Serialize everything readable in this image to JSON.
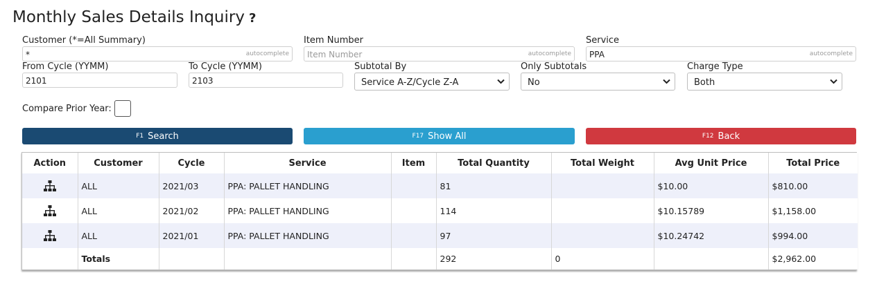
{
  "page": {
    "title": "Monthly Sales Details Inquiry",
    "help_glyph": "?"
  },
  "form": {
    "customer": {
      "label": "Customer (*=All Summary)",
      "value": "*",
      "hint": "autocomplete"
    },
    "item_number": {
      "label": "Item Number",
      "value": "",
      "placeholder": "Item Number",
      "hint": "autocomplete"
    },
    "service": {
      "label": "Service",
      "value": "PPA",
      "hint": "autocomplete"
    },
    "from_cycle": {
      "label": "From Cycle (YYMM)",
      "value": "2101"
    },
    "to_cycle": {
      "label": "To Cycle (YYMM)",
      "value": "2103"
    },
    "subtotal_by": {
      "label": "Subtotal By",
      "selected": "Service A-Z/Cycle Z-A"
    },
    "only_subtotals": {
      "label": "Only Subtotals",
      "selected": "No"
    },
    "charge_type": {
      "label": "Charge Type",
      "selected": "Both"
    },
    "compare_prior_year": {
      "label": "Compare Prior Year:",
      "checked": false
    }
  },
  "buttons": {
    "search": {
      "key": "F1",
      "label": "Search",
      "color": "#1a4a72"
    },
    "show_all": {
      "key": "F17",
      "label": "Show All",
      "color": "#2a9fcf"
    },
    "back": {
      "key": "F12",
      "label": "Back",
      "color": "#d0393f"
    }
  },
  "table": {
    "columns": [
      "Action",
      "Customer",
      "Cycle",
      "Service",
      "Item",
      "Total Quantity",
      "Total Weight",
      "Avg Unit Price",
      "Total Price"
    ],
    "rows": [
      {
        "action_icon": "hierarchy-icon",
        "customer": "ALL",
        "cycle": "2021/03",
        "service": "PPA: PALLET HANDLING",
        "item": "",
        "total_quantity": "81",
        "total_weight": "",
        "avg_unit_price": "$10.00",
        "total_price": "$810.00"
      },
      {
        "action_icon": "hierarchy-icon",
        "customer": "ALL",
        "cycle": "2021/02",
        "service": "PPA: PALLET HANDLING",
        "item": "",
        "total_quantity": "114",
        "total_weight": "",
        "avg_unit_price": "$10.15789",
        "total_price": "$1,158.00"
      },
      {
        "action_icon": "hierarchy-icon",
        "customer": "ALL",
        "cycle": "2021/01",
        "service": "PPA: PALLET HANDLING",
        "item": "",
        "total_quantity": "97",
        "total_weight": "",
        "avg_unit_price": "$10.24742",
        "total_price": "$994.00"
      }
    ],
    "totals": {
      "label": "Totals",
      "total_quantity": "292",
      "total_weight": "0",
      "total_price": "$2,962.00"
    }
  }
}
